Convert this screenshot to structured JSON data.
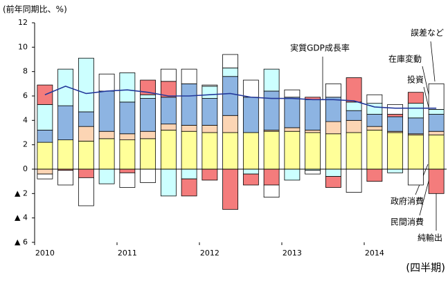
{
  "chart_data": {
    "type": "bar",
    "stacked": true,
    "ylabel": "(前年同期比、%)",
    "xlabel": "(四半期)",
    "categories": [
      "2010",
      null,
      null,
      null,
      "2011",
      null,
      null,
      null,
      "2012",
      null,
      null,
      null,
      "2013",
      null,
      null,
      null,
      "2014",
      null,
      null,
      null
    ],
    "series": [
      {
        "name": "民間消費",
        "color": "#ffff99",
        "values": [
          2.2,
          2.4,
          2.3,
          2.5,
          2.4,
          2.5,
          3.2,
          3.1,
          3.0,
          3.0,
          3.0,
          3.1,
          3.1,
          3.0,
          2.9,
          3.0,
          3.2,
          3.0,
          2.8,
          2.8
        ]
      },
      {
        "name": "政府消費",
        "color": "#fcd5b4",
        "values": [
          -0.4,
          0,
          1.2,
          0.6,
          0.5,
          0.6,
          0.5,
          0.5,
          0.6,
          1.4,
          0,
          0.1,
          0.3,
          0.2,
          1.0,
          1.0,
          0.3,
          0.1,
          0.1,
          0.3
        ]
      },
      {
        "name": "投資",
        "color": "#8db4e2",
        "values": [
          1.0,
          2.8,
          1.2,
          3.3,
          2.6,
          2.7,
          2.2,
          3.4,
          2.2,
          3.2,
          2.9,
          3.2,
          2.5,
          2.5,
          2.0,
          0.8,
          1.0,
          1.2,
          1.3,
          1.4
        ]
      },
      {
        "name": "在庫変動",
        "color": "#ccffff",
        "values": [
          2.1,
          3.0,
          4.4,
          -1.2,
          2.4,
          0.3,
          -2.2,
          -0.8,
          1.0,
          0.7,
          -0.4,
          1.8,
          -0.9,
          -0.1,
          -0.6,
          0.7,
          0.9,
          -0.3,
          1.2,
          0.4
        ]
      },
      {
        "name": "純輸出",
        "color": "#f47c7c",
        "values": [
          1.6,
          -0.1,
          -0.7,
          0,
          -0.3,
          1.2,
          1.3,
          -1.4,
          -0.9,
          -3.3,
          -0.9,
          -1.3,
          0,
          0.2,
          -0.9,
          2.0,
          -1.0,
          0.2,
          0.9,
          -2.0
        ]
      },
      {
        "name": "誤差など",
        "color": "#ffffff",
        "values": [
          -0.4,
          -1.2,
          -2.3,
          1.4,
          -1.2,
          -1.1,
          1.0,
          1.2,
          0.1,
          1.1,
          1.4,
          -1.0,
          0.6,
          -0.3,
          1.1,
          -1.9,
          0.7,
          0.8,
          -1.3,
          2.1
        ]
      }
    ],
    "line": {
      "name": "実質GDP成長率",
      "color": "#22379a",
      "values": [
        6.1,
        6.8,
        6.2,
        6.4,
        6.5,
        6.3,
        6.0,
        6.0,
        6.1,
        6.2,
        5.9,
        5.8,
        5.8,
        5.7,
        5.7,
        5.6,
        5.1,
        5.0,
        5.0,
        5.0
      ]
    },
    "ylim": [
      -6,
      12
    ],
    "yticks": [
      {
        "value": -6,
        "label": "▲ 6"
      },
      {
        "value": -4,
        "label": "▲ 4"
      },
      {
        "value": -2,
        "label": "▲ 2"
      },
      0,
      2,
      4,
      6,
      8,
      10,
      12
    ]
  }
}
